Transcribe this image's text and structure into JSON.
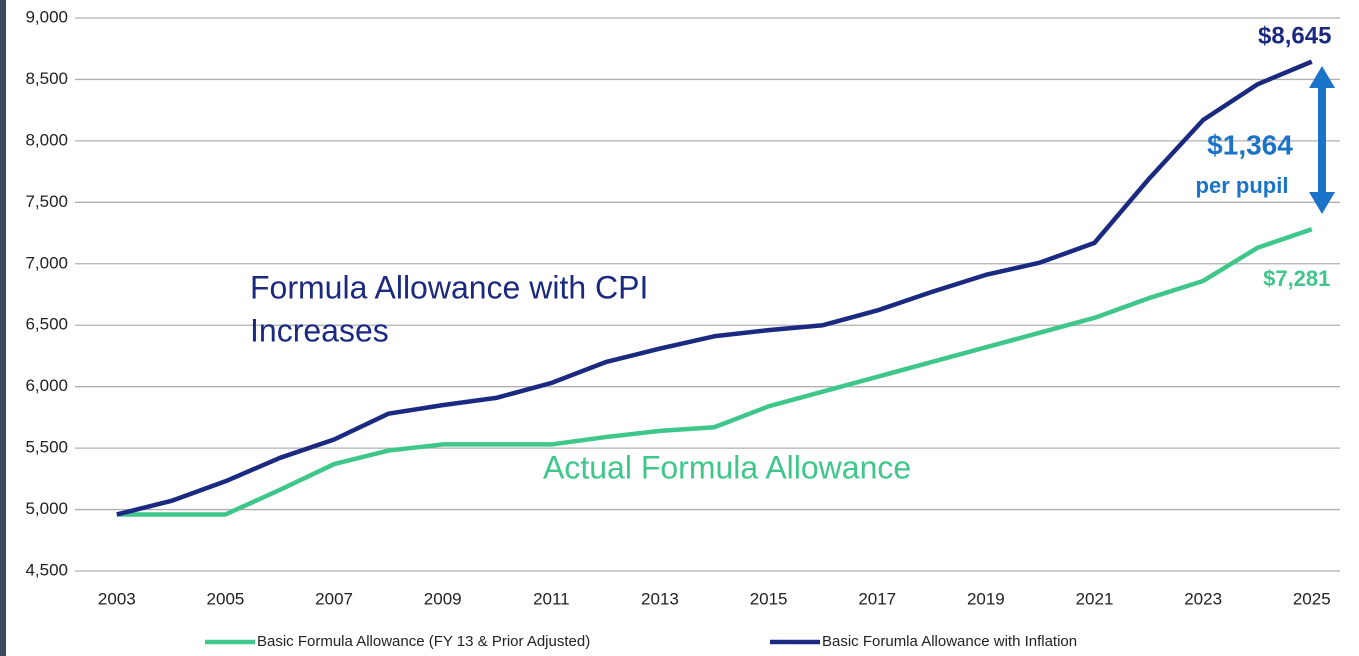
{
  "chart_data": {
    "type": "line",
    "x": [
      2003,
      2004,
      2005,
      2006,
      2007,
      2008,
      2009,
      2010,
      2011,
      2012,
      2013,
      2014,
      2015,
      2016,
      2017,
      2018,
      2019,
      2020,
      2021,
      2022,
      2023,
      2024,
      2025
    ],
    "series": [
      {
        "name": "Basic Formula Allowance (FY 13 & Prior Adjusted)",
        "color": "#3fc68a",
        "values": [
          4960,
          4960,
          4960,
          5160,
          5370,
          5480,
          5530,
          5530,
          5530,
          5590,
          5640,
          5670,
          5840,
          5960,
          6080,
          6200,
          6320,
          6440,
          6560,
          6720,
          6860,
          7130,
          7281
        ],
        "value_labels": [
          null,
          null,
          null,
          null,
          null,
          null,
          null,
          null,
          null,
          null,
          null,
          null,
          null,
          null,
          null,
          null,
          null,
          null,
          null,
          null,
          null,
          null,
          "$7,281"
        ]
      },
      {
        "name": "Basic Forumla Allowance with Inflation",
        "color": "#1b2a80",
        "values": [
          4960,
          5070,
          5230,
          5420,
          5570,
          5780,
          5850,
          5910,
          6030,
          6200,
          6310,
          6410,
          6460,
          6500,
          6620,
          6770,
          6910,
          7010,
          7170,
          7690,
          8170,
          8460,
          8645
        ],
        "value_labels": [
          null,
          null,
          null,
          null,
          null,
          null,
          null,
          null,
          null,
          null,
          null,
          null,
          null,
          null,
          null,
          null,
          null,
          null,
          null,
          null,
          null,
          null,
          "$8,645"
        ]
      }
    ],
    "annotations": [
      "Formula Allowance with CPI",
      "Increases",
      "Actual Formula Allowance",
      "$1,364",
      "per pupil"
    ],
    "xlim": [
      2002.23,
      2025.52
    ],
    "xticks": [
      2003,
      2005,
      2007,
      2009,
      2011,
      2013,
      2015,
      2017,
      2019,
      2021,
      2023,
      2025
    ],
    "ylim": [
      4500,
      9000
    ],
    "yticks": [
      {
        "value": 4500,
        "label": "4,500"
      },
      {
        "value": 5000,
        "label": "5,000"
      },
      {
        "value": 5500,
        "label": "5,500"
      },
      {
        "value": 6000,
        "label": "6,000"
      },
      {
        "value": 6500,
        "label": "6,500"
      },
      {
        "value": 7000,
        "label": "7,000"
      },
      {
        "value": 7500,
        "label": "7,500"
      },
      {
        "value": 8000,
        "label": "8,000"
      },
      {
        "value": 8500,
        "label": "8,500"
      },
      {
        "value": 9000,
        "label": "9,000"
      }
    ],
    "grid": true,
    "legend": "bottom"
  }
}
